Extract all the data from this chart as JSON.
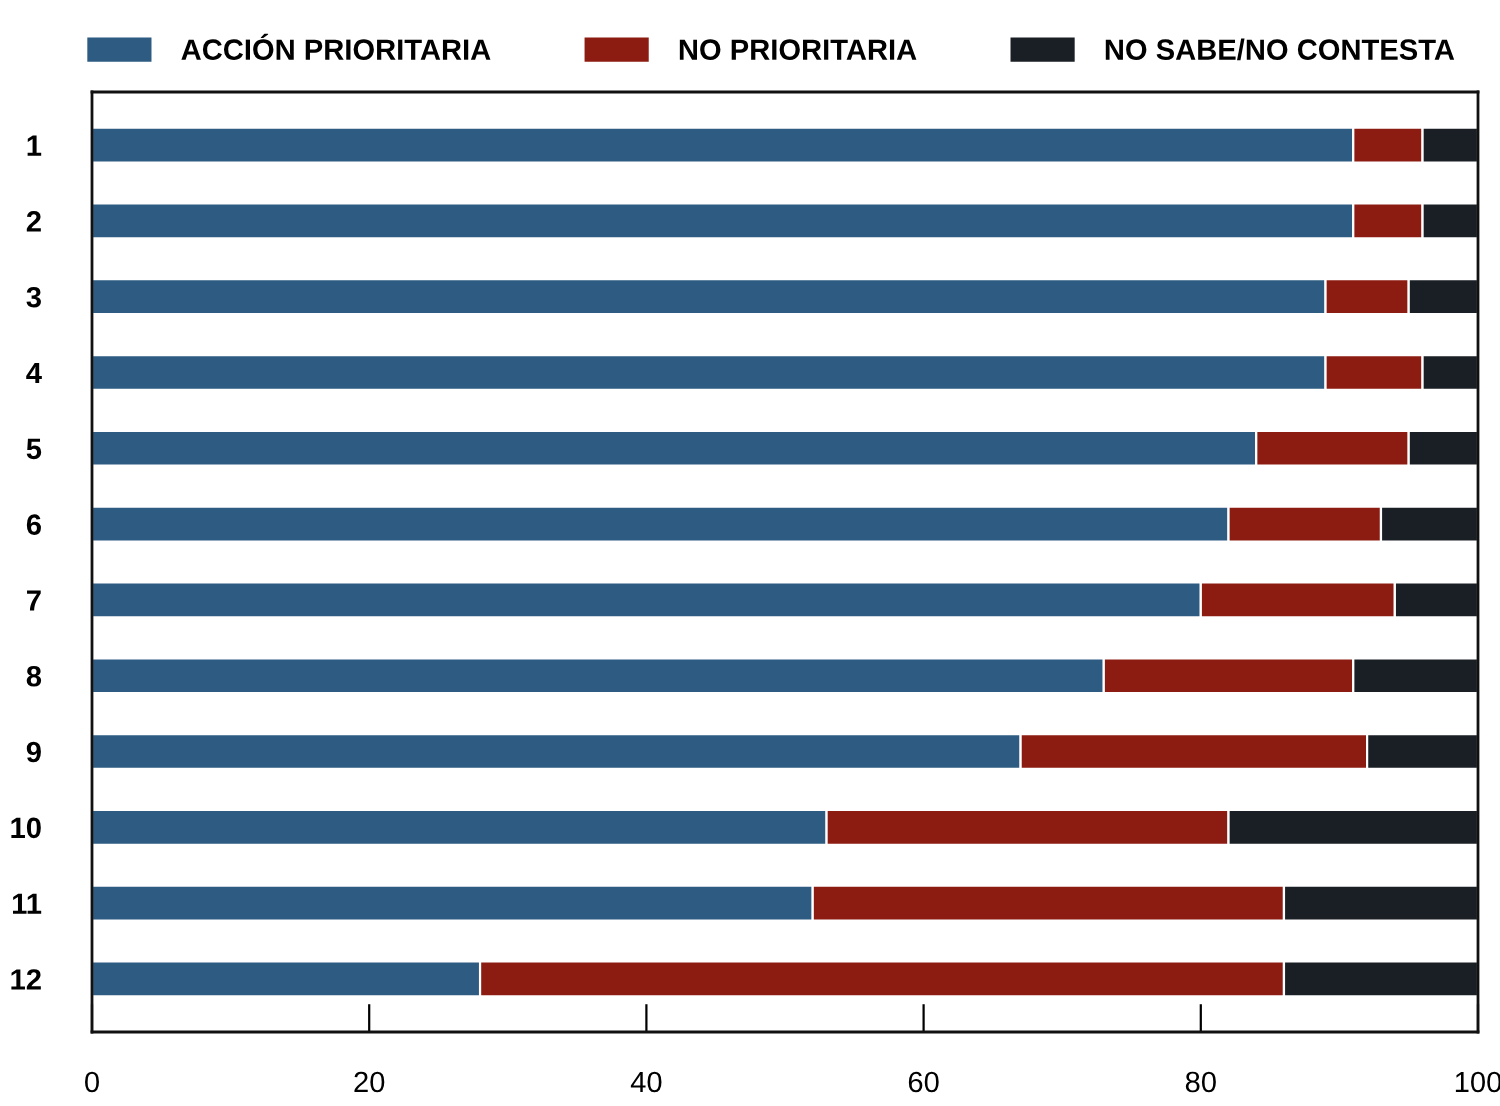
{
  "chart_data": {
    "type": "bar",
    "orientation": "horizontal",
    "stacked": true,
    "categories": [
      "1",
      "2",
      "3",
      "4",
      "5",
      "6",
      "7",
      "8",
      "9",
      "10",
      "11",
      "12"
    ],
    "series": [
      {
        "name": "ACCIÓN PRIORITARIA",
        "color": "#2d5b82",
        "values": [
          91,
          91,
          89,
          89,
          84,
          82,
          80,
          73,
          67,
          53,
          52,
          28
        ]
      },
      {
        "name": "NO PRIORITARIA",
        "color": "#8c1c12",
        "values": [
          5,
          5,
          6,
          7,
          11,
          11,
          14,
          18,
          25,
          29,
          34,
          58
        ]
      },
      {
        "name": "NO SABE/NO CONTESTA",
        "color": "#1a1f26",
        "values": [
          4,
          4,
          5,
          4,
          5,
          7,
          6,
          9,
          8,
          18,
          14,
          14
        ]
      }
    ],
    "xlim": [
      0,
      100
    ],
    "xticks": [
      0,
      20,
      40,
      60,
      80,
      100
    ],
    "legend": "top",
    "grid": false
  }
}
